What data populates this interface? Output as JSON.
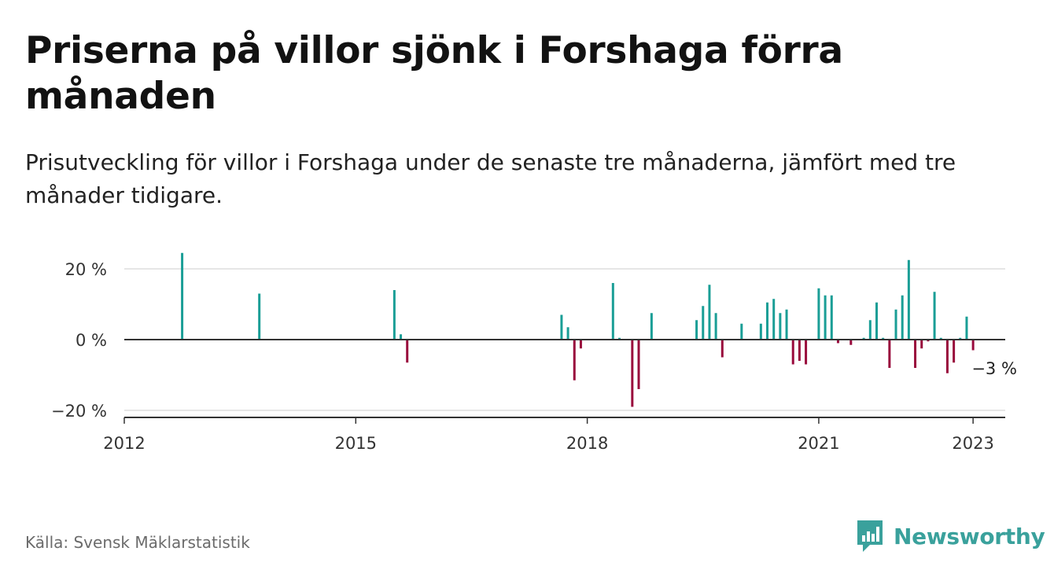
{
  "title": "Priserna på villor sjönk i Forshaga förra månaden",
  "subtitle": "Prisutveckling för villor i Forshaga under de senaste tre månaderna, jämfört med tre månader tidigare.",
  "source": "Källa: Svensk Mäklarstatistik",
  "brand": "Newsworthy",
  "colors": {
    "positive": "#1a9e96",
    "negative": "#990a3c",
    "grid": "#dddddd",
    "axis": "#333333",
    "brand": "#3aa19c"
  },
  "chart_data": {
    "type": "bar",
    "title": "",
    "xlabel": "",
    "ylabel": "",
    "ylim": [
      -22,
      24
    ],
    "xlim": [
      "2012-01",
      "2023-06"
    ],
    "y_ticks": [
      {
        "value": 20,
        "label": "20 %"
      },
      {
        "value": 0,
        "label": "0 %"
      },
      {
        "value": -20,
        "label": "−20 %"
      }
    ],
    "x_ticks": [
      {
        "value": "2012-01",
        "label": "2012"
      },
      {
        "value": "2015-01",
        "label": "2015"
      },
      {
        "value": "2018-01",
        "label": "2018"
      },
      {
        "value": "2021-01",
        "label": "2021"
      },
      {
        "value": "2023-01",
        "label": "2023"
      }
    ],
    "grid": "horizontal",
    "annotation": {
      "x": "2023-01",
      "value": -3,
      "label": "−3 %"
    },
    "series": [
      {
        "values": [
          {
            "x": "2012-10",
            "value": 24.5
          },
          {
            "x": "2013-10",
            "value": 13
          },
          {
            "x": "2015-07",
            "value": 14
          },
          {
            "x": "2015-08",
            "value": 1.5
          },
          {
            "x": "2015-09",
            "value": -6.5
          },
          {
            "x": "2017-09",
            "value": 7
          },
          {
            "x": "2017-10",
            "value": 3.5
          },
          {
            "x": "2017-11",
            "value": -11.5
          },
          {
            "x": "2017-12",
            "value": -2.5
          },
          {
            "x": "2018-05",
            "value": 16
          },
          {
            "x": "2018-06",
            "value": 0.5
          },
          {
            "x": "2018-08",
            "value": -19
          },
          {
            "x": "2018-09",
            "value": -14
          },
          {
            "x": "2018-11",
            "value": 7.5
          },
          {
            "x": "2019-06",
            "value": 5.5
          },
          {
            "x": "2019-07",
            "value": 9.5
          },
          {
            "x": "2019-08",
            "value": 15.5
          },
          {
            "x": "2019-09",
            "value": 7.5
          },
          {
            "x": "2019-10",
            "value": -5
          },
          {
            "x": "2020-01",
            "value": 4.5
          },
          {
            "x": "2020-04",
            "value": 4.5
          },
          {
            "x": "2020-05",
            "value": 10.5
          },
          {
            "x": "2020-06",
            "value": 11.5
          },
          {
            "x": "2020-07",
            "value": 7.5
          },
          {
            "x": "2020-08",
            "value": 8.5
          },
          {
            "x": "2020-09",
            "value": -7
          },
          {
            "x": "2020-10",
            "value": -6
          },
          {
            "x": "2020-11",
            "value": -7
          },
          {
            "x": "2021-01",
            "value": 14.5
          },
          {
            "x": "2021-02",
            "value": 12.5
          },
          {
            "x": "2021-03",
            "value": 12.5
          },
          {
            "x": "2021-04",
            "value": -1
          },
          {
            "x": "2021-06",
            "value": -1.5
          },
          {
            "x": "2021-08",
            "value": 0.5
          },
          {
            "x": "2021-09",
            "value": 5.5
          },
          {
            "x": "2021-10",
            "value": 10.5
          },
          {
            "x": "2021-11",
            "value": 0.5
          },
          {
            "x": "2021-12",
            "value": -8
          },
          {
            "x": "2022-01",
            "value": 8.5
          },
          {
            "x": "2022-02",
            "value": 12.5
          },
          {
            "x": "2022-03",
            "value": 22.5
          },
          {
            "x": "2022-04",
            "value": -8
          },
          {
            "x": "2022-05",
            "value": -2.5
          },
          {
            "x": "2022-06",
            "value": -0.5
          },
          {
            "x": "2022-07",
            "value": 13.5
          },
          {
            "x": "2022-08",
            "value": 0.5
          },
          {
            "x": "2022-09",
            "value": -9.5
          },
          {
            "x": "2022-10",
            "value": -6.5
          },
          {
            "x": "2022-11",
            "value": 0.5
          },
          {
            "x": "2022-12",
            "value": 6.5
          },
          {
            "x": "2023-01",
            "value": -3
          }
        ]
      }
    ]
  }
}
